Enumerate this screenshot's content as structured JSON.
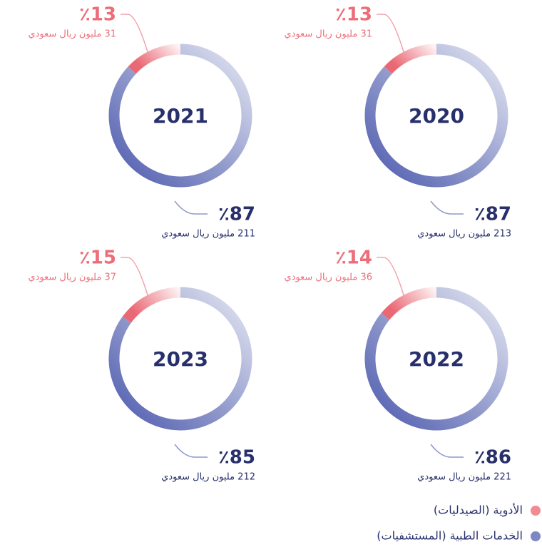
{
  "chart_data": {
    "type": "donut",
    "categories": [
      "2020",
      "2021",
      "2022",
      "2023"
    ],
    "series": [
      {
        "name": "الأدوية (الصيدليات)",
        "color": "#ec6e79",
        "values": [
          13,
          13,
          14,
          15
        ],
        "value_labels": [
          "٪13",
          "٪13",
          "٪14",
          "٪15"
        ],
        "amount_labels": [
          "31 مليون ريال سعودي",
          "31 مليون ريال سعودي",
          "36 مليون ريال سعودي",
          "37 مليون ريال سعودي"
        ]
      },
      {
        "name": "الخدمات الطبية (المستشفيات)",
        "color": "#5c69b6",
        "values": [
          87,
          87,
          86,
          85
        ],
        "value_labels": [
          "٪87",
          "٪87",
          "٪86",
          "٪85"
        ],
        "amount_labels": [
          "213 مليون ريال سعودي",
          "211 مليون ريال سعودي",
          "221 مليون ريال سعودي",
          "212 مليون ريال سعودي"
        ]
      }
    ]
  }
}
